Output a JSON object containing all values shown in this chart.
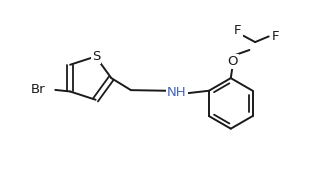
{
  "background": "#ffffff",
  "bond_color": "#1a1a1a",
  "label_NH": "NH",
  "label_S": "S",
  "label_Br": "Br",
  "label_O": "O",
  "label_F": "F",
  "color_NH": "#4466bb",
  "color_S": "#1a1a1a",
  "color_Br": "#1a1a1a",
  "color_O": "#1a1a1a",
  "color_F": "#1a1a1a",
  "figsize": [
    3.32,
    1.91
  ],
  "dpi": 100,
  "xlim": [
    0,
    10
  ],
  "ylim": [
    0,
    6
  ]
}
